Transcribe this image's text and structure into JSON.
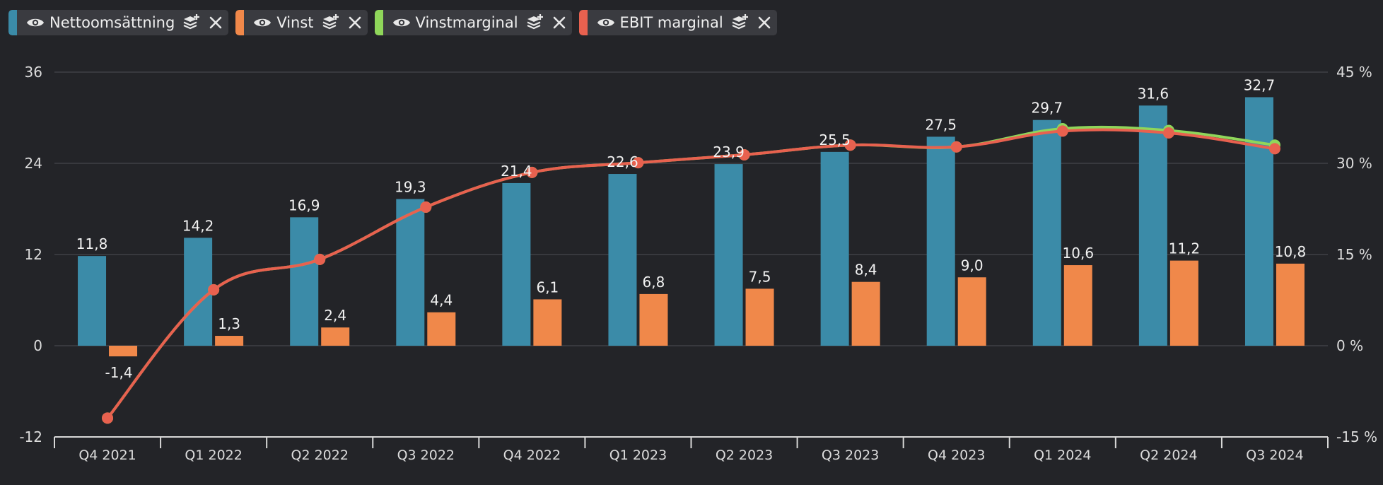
{
  "legend": [
    {
      "label": "Nettoomsättning",
      "color": "#3b8ba8",
      "eye_icon": "eye-icon",
      "layers_icon": "layers-icon",
      "close_icon": "close-icon"
    },
    {
      "label": "Vinst",
      "color": "#f0884a",
      "eye_icon": "eye-icon",
      "layers_icon": "layers-icon",
      "close_icon": "close-icon"
    },
    {
      "label": "Vinstmarginal",
      "color": "#8fd65a",
      "eye_icon": "eye-icon",
      "layers_icon": "layers-icon",
      "close_icon": "close-icon"
    },
    {
      "label": "EBIT marginal",
      "color": "#e8614f",
      "eye_icon": "eye-icon",
      "layers_icon": "layers-icon",
      "close_icon": "close-icon"
    }
  ],
  "chart_data": {
    "type": "bar",
    "categories": [
      "Q4 2021",
      "Q1 2022",
      "Q2 2022",
      "Q3 2022",
      "Q4 2022",
      "Q1 2023",
      "Q2 2023",
      "Q3 2023",
      "Q4 2023",
      "Q1 2024",
      "Q2 2024",
      "Q3 2024"
    ],
    "series": [
      {
        "name": "Nettoomsättning",
        "kind": "bar",
        "axis": "left",
        "color": "#3b8ba8",
        "values": [
          11.8,
          14.2,
          16.9,
          19.3,
          21.4,
          22.6,
          23.9,
          25.5,
          27.5,
          29.7,
          31.6,
          32.7
        ],
        "labels": [
          "11,8",
          "14,2",
          "16,9",
          "19,3",
          "21,4",
          "22,6",
          "23,9",
          "25,5",
          "27,5",
          "29,7",
          "31,6",
          "32,7"
        ]
      },
      {
        "name": "Vinst",
        "kind": "bar",
        "axis": "left",
        "color": "#f0884a",
        "values": [
          -1.4,
          1.3,
          2.4,
          4.4,
          6.1,
          6.8,
          7.5,
          8.4,
          9.0,
          10.6,
          11.2,
          10.8
        ],
        "labels": [
          "-1,4",
          "1,3",
          "2,4",
          "4,4",
          "6,1",
          "6,8",
          "7,5",
          "8,4",
          "9,0",
          "10,6",
          "11,2",
          "10,8"
        ]
      },
      {
        "name": "Vinstmarginal",
        "kind": "line",
        "axis": "right",
        "color": "#8fd65a",
        "values": [
          -11.9,
          9.2,
          14.2,
          22.8,
          28.5,
          30.1,
          31.4,
          33.0,
          32.7,
          35.7,
          35.4,
          33.0
        ]
      },
      {
        "name": "EBIT marginal",
        "kind": "line",
        "axis": "right",
        "color": "#e8614f",
        "values": [
          -11.9,
          9.2,
          14.2,
          22.8,
          28.5,
          30.1,
          31.4,
          33.0,
          32.7,
          35.3,
          35.0,
          32.4
        ]
      }
    ],
    "y_left": {
      "ticks": [
        36,
        24,
        12,
        0,
        -12
      ],
      "range": [
        -12,
        36
      ]
    },
    "y_right": {
      "ticks": [
        "45 %",
        "30 %",
        "15 %",
        "0 %",
        "-15 %"
      ],
      "range": [
        -15,
        45
      ]
    },
    "grid": true
  }
}
